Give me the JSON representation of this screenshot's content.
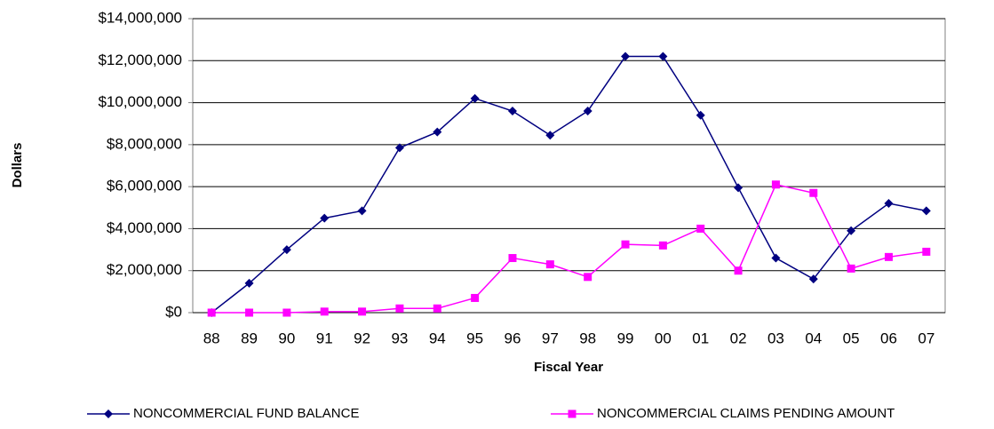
{
  "chart_data": {
    "type": "line",
    "xlabel": "Fiscal Year",
    "ylabel": "Dollars",
    "categories": [
      "88",
      "89",
      "90",
      "91",
      "92",
      "93",
      "94",
      "95",
      "96",
      "97",
      "98",
      "99",
      "00",
      "01",
      "02",
      "03",
      "04",
      "05",
      "06",
      "07"
    ],
    "series": [
      {
        "name": "NONCOMMERCIAL FUND BALANCE",
        "color": "#000080",
        "marker": "diamond",
        "values": [
          0,
          1400000,
          3000000,
          4500000,
          4850000,
          7850000,
          8600000,
          10200000,
          9600000,
          8450000,
          9600000,
          12200000,
          12200000,
          9400000,
          5950000,
          2600000,
          1600000,
          3900000,
          5200000,
          4850000
        ]
      },
      {
        "name": "NONCOMMERCIAL CLAIMS PENDING AMOUNT",
        "color": "#ff00ff",
        "marker": "square",
        "values": [
          0,
          0,
          0,
          50000,
          50000,
          200000,
          200000,
          700000,
          2600000,
          2300000,
          1700000,
          3250000,
          3200000,
          4000000,
          2000000,
          6100000,
          5700000,
          2100000,
          2650000,
          2900000
        ]
      }
    ],
    "ylim": [
      0,
      14000000
    ],
    "yticks": [
      {
        "value": 0,
        "label": "$0"
      },
      {
        "value": 2000000,
        "label": "$2,000,000"
      },
      {
        "value": 4000000,
        "label": "$4,000,000"
      },
      {
        "value": 6000000,
        "label": "$6,000,000"
      },
      {
        "value": 8000000,
        "label": "$8,000,000"
      },
      {
        "value": 10000000,
        "label": "$10,000,000"
      },
      {
        "value": 12000000,
        "label": "$12,000,000"
      },
      {
        "value": 14000000,
        "label": "$14,000,000"
      }
    ],
    "grid": true,
    "legend": "bottom"
  }
}
